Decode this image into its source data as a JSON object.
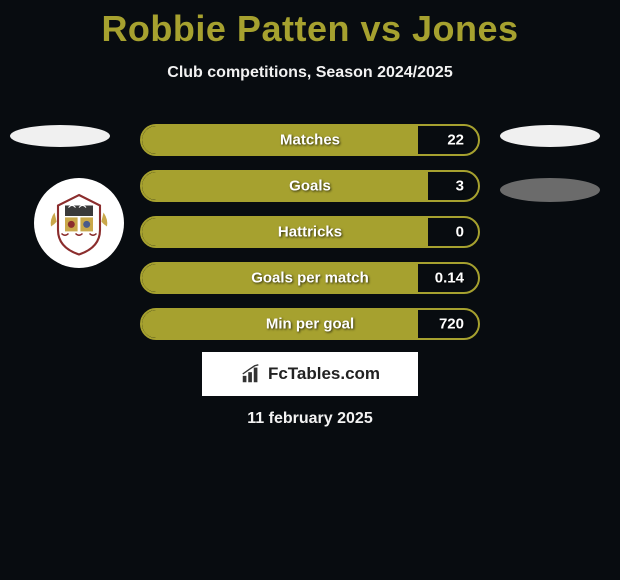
{
  "header": {
    "title": "Robbie Patten vs Jones",
    "subtitle": "Club competitions, Season 2024/2025"
  },
  "bars": [
    {
      "label": "Matches",
      "value": "22",
      "fill_pct": 82
    },
    {
      "label": "Goals",
      "value": "3",
      "fill_pct": 85
    },
    {
      "label": "Hattricks",
      "value": "0",
      "fill_pct": 85
    },
    {
      "label": "Goals per match",
      "value": "0.14",
      "fill_pct": 82
    },
    {
      "label": "Min per goal",
      "value": "720",
      "fill_pct": 82
    }
  ],
  "brand": {
    "text": "FcTables.com"
  },
  "date": "11 february 2025",
  "colors": {
    "accent": "#a6a12f",
    "background": "#080c10",
    "ellipse_light": "#f0f0f0",
    "ellipse_dark": "#6b6b6b",
    "text": "#ffffff"
  }
}
